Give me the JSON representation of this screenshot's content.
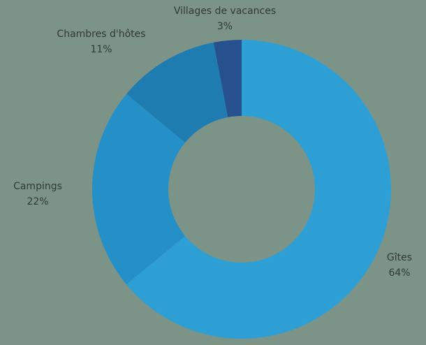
{
  "chart_data": {
    "type": "pie",
    "donut": true,
    "title": "",
    "slices": [
      {
        "name": "Gîtes",
        "value": 64,
        "value_label": "64%",
        "color": "#2e9fd4"
      },
      {
        "name": "Campings",
        "value": 22,
        "value_label": "22%",
        "color": "#2590c7"
      },
      {
        "name": "Chambres d'hôtes",
        "value": 11,
        "value_label": "11%",
        "color": "#1f7cb0"
      },
      {
        "name": "Villages de vacances",
        "value": 3,
        "value_label": "3%",
        "color": "#26508e"
      }
    ],
    "background": "#7b9487"
  }
}
